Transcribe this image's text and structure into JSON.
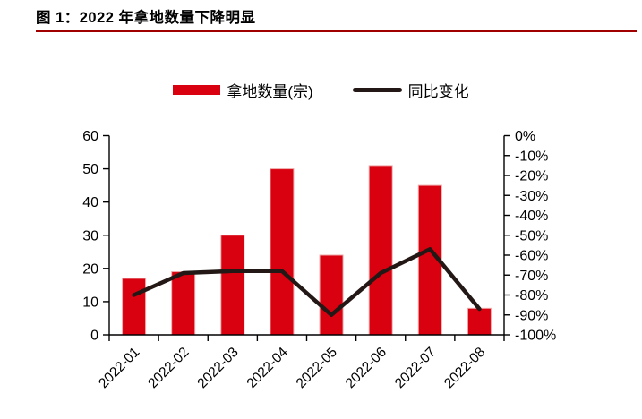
{
  "title": "图 1：2022 年拿地数量下降明显",
  "colors": {
    "title_underline": "#A00000",
    "bar": "#D9000F",
    "bar_edge": "#EFA9A9",
    "line": "#231815",
    "axis": "#000000",
    "tick_text": "#000000"
  },
  "legend": [
    {
      "label": "拿地数量(宗)",
      "type": "bar"
    },
    {
      "label": "同比变化",
      "type": "line"
    }
  ],
  "chart_data": {
    "type": "bar+line combo",
    "categories": [
      "2022-01",
      "2022-02",
      "2022-03",
      "2022-04",
      "2022-05",
      "2022-06",
      "2022-07",
      "2022-08"
    ],
    "series": [
      {
        "name": "拿地数量(宗)",
        "type": "bar",
        "axis": "left",
        "values": [
          17,
          19,
          30,
          50,
          24,
          51,
          45,
          8
        ]
      },
      {
        "name": "同比变化",
        "type": "line",
        "axis": "right",
        "values": [
          -80,
          -69,
          -68,
          -68,
          -90,
          -69,
          -57,
          -87
        ]
      }
    ],
    "left_axis": {
      "min": 0,
      "max": 60,
      "step": 10,
      "tick_labels": [
        "60",
        "50",
        "40",
        "30",
        "20",
        "10",
        "0"
      ]
    },
    "right_axis": {
      "min": -100,
      "max": 0,
      "step": -10,
      "tick_labels": [
        "0%",
        "-10%",
        "-20%",
        "-30%",
        "-40%",
        "-50%",
        "-60%",
        "-70%",
        "-80%",
        "-90%",
        "-100%"
      ]
    },
    "grid": "off",
    "legend_position": "top-center",
    "x_tick_style": "boundary ticks, labels rotated 45deg"
  }
}
